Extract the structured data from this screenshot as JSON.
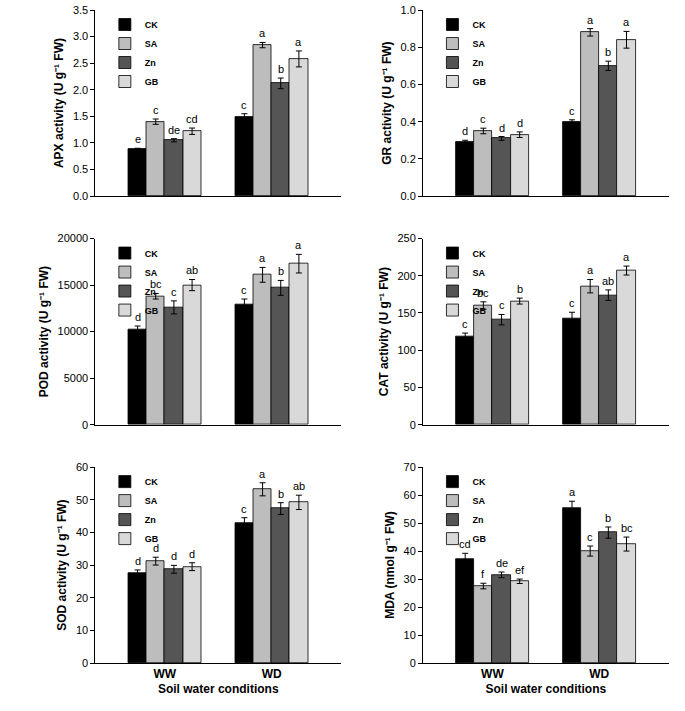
{
  "chart_data": [
    {
      "type": "bar",
      "y_label": "APX activity (U g⁻¹ FW)",
      "categories": [
        "WW",
        "WD"
      ],
      "legend": "upper left",
      "tick_labels": "y",
      "ylim": [
        0,
        3.5
      ],
      "yticks": [
        {
          "value": 0,
          "label": "0.0"
        },
        {
          "value": 0.5,
          "label": "0.5"
        },
        {
          "value": 1,
          "label": "1.0"
        },
        {
          "value": 1.5,
          "label": "1.5"
        },
        {
          "value": 2,
          "label": "2.0"
        },
        {
          "value": 2.5,
          "label": "2.5"
        },
        {
          "value": 3,
          "label": "3.0"
        },
        {
          "value": 3.5,
          "label": "3.5"
        }
      ],
      "series": [
        {
          "name": "CK",
          "color": "#000000",
          "values": [
            0.88,
            1.48
          ],
          "errors": [
            0.02,
            0.07
          ],
          "letters": [
            "e",
            "c"
          ]
        },
        {
          "name": "SA",
          "color": "#bdbdbd",
          "values": [
            1.4,
            2.84
          ],
          "errors": [
            0.05,
            0.05
          ],
          "letters": [
            "c",
            "a"
          ]
        },
        {
          "name": "Zn",
          "color": "#555555",
          "values": [
            1.05,
            2.12
          ],
          "errors": [
            0.03,
            0.1
          ],
          "letters": [
            "de",
            "b"
          ]
        },
        {
          "name": "GB",
          "color": "#d9d9d9",
          "values": [
            1.22,
            2.58
          ],
          "errors": [
            0.06,
            0.15
          ],
          "letters": [
            "cd",
            "a"
          ]
        }
      ]
    },
    {
      "type": "bar",
      "y_label": "GR activity (U g⁻¹ FW)",
      "categories": [
        "WW",
        "WD"
      ],
      "legend": "upper left",
      "tick_labels": "y",
      "ylim": [
        0,
        1
      ],
      "yticks": [
        {
          "value": 0,
          "label": "0.0"
        },
        {
          "value": 0.2,
          "label": "0.2"
        },
        {
          "value": 0.4,
          "label": "0.4"
        },
        {
          "value": 0.6,
          "label": "0.6"
        },
        {
          "value": 0.8,
          "label": "0.8"
        },
        {
          "value": 1,
          "label": "1.0"
        }
      ],
      "series": [
        {
          "name": "CK",
          "color": "#000000",
          "values": [
            0.29,
            0.4
          ],
          "errors": [
            0.01,
            0.01
          ],
          "letters": [
            "d",
            "c"
          ]
        },
        {
          "name": "SA",
          "color": "#bdbdbd",
          "values": [
            0.35,
            0.88
          ],
          "errors": [
            0.015,
            0.02
          ],
          "letters": [
            "c",
            "a"
          ]
        },
        {
          "name": "Zn",
          "color": "#555555",
          "values": [
            0.31,
            0.7
          ],
          "errors": [
            0.01,
            0.025
          ],
          "letters": [
            "d",
            "b"
          ]
        },
        {
          "name": "GB",
          "color": "#d9d9d9",
          "values": [
            0.33,
            0.84
          ],
          "errors": [
            0.015,
            0.045
          ],
          "letters": [
            "d",
            "a"
          ]
        }
      ]
    },
    {
      "type": "bar",
      "y_label": "POD activity (U g⁻¹ FW)",
      "categories": [
        "WW",
        "WD"
      ],
      "legend": "upper left",
      "tick_labels": "y",
      "ylim": [
        0,
        20000
      ],
      "yticks": [
        0,
        5000,
        10000,
        15000,
        20000
      ],
      "series": [
        {
          "name": "CK",
          "color": "#000000",
          "values": [
            10200,
            12900
          ],
          "errors": [
            400,
            600
          ],
          "letters": [
            "d",
            "c"
          ]
        },
        {
          "name": "SA",
          "color": "#bdbdbd",
          "values": [
            13800,
            16100
          ],
          "errors": [
            300,
            800
          ],
          "letters": [
            "bc",
            "a"
          ]
        },
        {
          "name": "Zn",
          "color": "#555555",
          "values": [
            12600,
            14700
          ],
          "errors": [
            700,
            800
          ],
          "letters": [
            "c",
            "b"
          ]
        },
        {
          "name": "GB",
          "color": "#d9d9d9",
          "values": [
            15000,
            17300
          ],
          "errors": [
            600,
            1000
          ],
          "letters": [
            "ab",
            "a"
          ]
        }
      ]
    },
    {
      "type": "bar",
      "y_label": "CAT activity (U g⁻¹ FW)",
      "categories": [
        "WW",
        "WD"
      ],
      "legend": "upper left",
      "tick_labels": "y",
      "ylim": [
        0,
        250
      ],
      "yticks": [
        0,
        50,
        100,
        150,
        200,
        250
      ],
      "series": [
        {
          "name": "CK",
          "color": "#000000",
          "values": [
            118,
            143
          ],
          "errors": [
            5,
            8
          ],
          "letters": [
            "c",
            "c"
          ]
        },
        {
          "name": "SA",
          "color": "#bdbdbd",
          "values": [
            160,
            186
          ],
          "errors": [
            5,
            9
          ],
          "letters": [
            "bc",
            "a"
          ]
        },
        {
          "name": "Zn",
          "color": "#555555",
          "values": [
            141,
            174
          ],
          "errors": [
            7,
            7
          ],
          "letters": [
            "c",
            "ab"
          ]
        },
        {
          "name": "GB",
          "color": "#d9d9d9",
          "values": [
            166,
            207
          ],
          "errors": [
            4,
            6
          ],
          "letters": [
            "b",
            "a"
          ]
        }
      ]
    },
    {
      "type": "bar",
      "y_label": "SOD activity (U g⁻¹ FW)",
      "x_label": "Soil water conditions",
      "categories": [
        "WW",
        "WD"
      ],
      "legend": "upper left",
      "ylim": [
        0,
        60
      ],
      "yticks": [
        0,
        10,
        20,
        30,
        40,
        50,
        60
      ],
      "series": [
        {
          "name": "CK",
          "color": "#000000",
          "values": [
            27.5,
            43.0
          ],
          "errors": [
            1.0,
            1.5
          ],
          "letters": [
            "d",
            "c"
          ]
        },
        {
          "name": "SA",
          "color": "#bdbdbd",
          "values": [
            31.2,
            53.2
          ],
          "errors": [
            1.2,
            2.0
          ],
          "letters": [
            "d",
            "a"
          ]
        },
        {
          "name": "Zn",
          "color": "#555555",
          "values": [
            28.7,
            47.3
          ],
          "errors": [
            1.2,
            1.8
          ],
          "letters": [
            "d",
            "b"
          ]
        },
        {
          "name": "GB",
          "color": "#d9d9d9",
          "values": [
            29.5,
            49.2
          ],
          "errors": [
            1.2,
            2.2
          ],
          "letters": [
            "d",
            "ab"
          ]
        }
      ]
    },
    {
      "type": "bar",
      "y_label": "MDA (nmol g⁻¹ FW)",
      "x_label": "Soil water conditions",
      "categories": [
        "WW",
        "WD"
      ],
      "legend": "upper left",
      "ylim": [
        0,
        70
      ],
      "yticks": [
        0,
        10,
        20,
        30,
        40,
        50,
        60,
        70
      ],
      "series": [
        {
          "name": "CK",
          "color": "#000000",
          "values": [
            37.2,
            55.3
          ],
          "errors": [
            2.0,
            2.5
          ],
          "letters": [
            "cd",
            "a"
          ]
        },
        {
          "name": "SA",
          "color": "#bdbdbd",
          "values": [
            27.5,
            40.0
          ],
          "errors": [
            1.0,
            1.8
          ],
          "letters": [
            "f",
            "c"
          ]
        },
        {
          "name": "Zn",
          "color": "#555555",
          "values": [
            31.5,
            46.6
          ],
          "errors": [
            1.0,
            2.0
          ],
          "letters": [
            "de",
            "b"
          ]
        },
        {
          "name": "GB",
          "color": "#d9d9d9",
          "values": [
            29.2,
            42.5
          ],
          "errors": [
            0.8,
            2.5
          ],
          "letters": [
            "ef",
            "bc"
          ]
        }
      ]
    }
  ]
}
